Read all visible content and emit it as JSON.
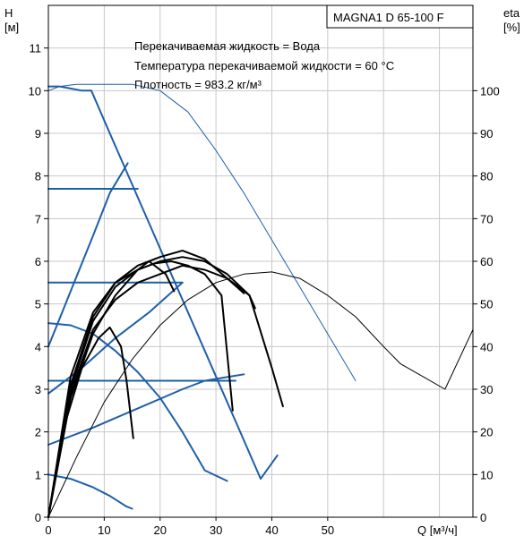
{
  "chart_data": {
    "type": "line",
    "model_label": "MAGNA1 D 65-100 F",
    "info_lines": [
      "Перекачиваемая жидкость = Вода",
      "Температура перекачиваемой жидкости = 60 °C",
      "Плотность = 983.2 кг/м³"
    ],
    "left_axis": {
      "label": "H",
      "unit": "[м]",
      "range": [
        0,
        12
      ],
      "ticks": [
        "0",
        "1",
        "2",
        "3",
        "4",
        "5",
        "6",
        "7",
        "8",
        "9",
        "10",
        "11"
      ]
    },
    "right_axis": {
      "label": "eta",
      "unit": "[%]",
      "range": [
        0,
        120
      ],
      "ticks": [
        "0",
        "10",
        "20",
        "30",
        "40",
        "50",
        "60",
        "70",
        "80",
        "90",
        "100"
      ]
    },
    "x_axis": {
      "label": "Q [м³/ч]",
      "range": [
        0,
        76
      ],
      "ticks": [
        "0",
        "10",
        "20",
        "30",
        "40",
        "50"
      ]
    },
    "grid": true,
    "colors": {
      "head_curve": "#1f5fa8",
      "efficiency_curve": "#000000",
      "grid": "#c8c8c8"
    },
    "series": [
      {
        "kind": "head-max",
        "points": [
          [
            0,
            10.0
          ],
          [
            2,
            10.1
          ],
          [
            5,
            10.15
          ],
          [
            10,
            10.15
          ],
          [
            15,
            10.15
          ],
          [
            20,
            10.0
          ],
          [
            25,
            9.5
          ],
          [
            30,
            8.6
          ],
          [
            35,
            7.6
          ],
          [
            40,
            6.5
          ],
          [
            45,
            5.4
          ],
          [
            50,
            4.3
          ],
          [
            55,
            3.2
          ]
        ]
      },
      {
        "kind": "head-max-limit",
        "points": [
          [
            0,
            10.1
          ],
          [
            2,
            10.1
          ],
          [
            4,
            10.05
          ],
          [
            6,
            10.0
          ],
          [
            7.7,
            10.0
          ],
          [
            10,
            9.3
          ],
          [
            14,
            8.1
          ],
          [
            18,
            6.9
          ],
          [
            22,
            5.7
          ],
          [
            26,
            4.5
          ],
          [
            30,
            3.3
          ],
          [
            34,
            2.1
          ],
          [
            38,
            0.9
          ],
          [
            41,
            1.45
          ]
        ]
      },
      {
        "kind": "const-pressure-high",
        "points": [
          [
            0,
            7.7
          ],
          [
            8,
            7.7
          ],
          [
            12,
            7.7
          ],
          [
            15,
            7.7
          ],
          [
            16,
            7.7
          ]
        ]
      },
      {
        "kind": "prop-pressure-high",
        "points": [
          [
            0,
            4.0
          ],
          [
            4,
            5.3
          ],
          [
            8,
            6.6
          ],
          [
            11,
            7.6
          ],
          [
            14.2,
            8.3
          ]
        ]
      },
      {
        "kind": "const-pressure-mid",
        "points": [
          [
            0,
            5.5
          ],
          [
            8,
            5.5
          ],
          [
            16,
            5.5
          ],
          [
            22,
            5.5
          ],
          [
            24,
            5.5
          ]
        ]
      },
      {
        "kind": "prop-pressure-mid",
        "points": [
          [
            0,
            2.9
          ],
          [
            6,
            3.5
          ],
          [
            12,
            4.2
          ],
          [
            18,
            4.8
          ],
          [
            24,
            5.5
          ]
        ]
      },
      {
        "kind": "prop-pressure-low",
        "points": [
          [
            0,
            1.7
          ],
          [
            8,
            2.1
          ],
          [
            16,
            2.55
          ],
          [
            24,
            3.0
          ],
          [
            28,
            3.2
          ],
          [
            35,
            3.35
          ]
        ]
      },
      {
        "kind": "const-pressure-low",
        "points": [
          [
            0,
            3.2
          ],
          [
            10,
            3.2
          ],
          [
            20,
            3.2
          ],
          [
            30,
            3.2
          ],
          [
            33.5,
            3.2
          ]
        ]
      },
      {
        "kind": "min-curve-a",
        "points": [
          [
            0,
            4.55
          ],
          [
            4,
            4.5
          ],
          [
            8,
            4.3
          ],
          [
            12,
            3.9
          ],
          [
            16,
            3.4
          ],
          [
            20,
            2.8
          ],
          [
            24,
            2.0
          ],
          [
            28,
            1.1
          ],
          [
            32,
            0.85
          ]
        ]
      },
      {
        "kind": "min-curve-b",
        "points": [
          [
            0,
            1.0
          ],
          [
            4,
            0.9
          ],
          [
            8,
            0.7
          ],
          [
            11,
            0.5
          ],
          [
            14,
            0.25
          ],
          [
            15,
            0.2
          ]
        ]
      },
      {
        "kind": "eta-overall",
        "points": [
          [
            0,
            0
          ],
          [
            5,
            14
          ],
          [
            10,
            27
          ],
          [
            15,
            37
          ],
          [
            20,
            45
          ],
          [
            25,
            51
          ],
          [
            30,
            55
          ],
          [
            35,
            57
          ],
          [
            40,
            57.5
          ],
          [
            45,
            56
          ],
          [
            50,
            52
          ],
          [
            55,
            47
          ],
          [
            60,
            40
          ],
          [
            63,
            36
          ],
          [
            67,
            33
          ],
          [
            71,
            30
          ],
          [
            76,
            44
          ]
        ]
      },
      {
        "kind": "eta-curve-1",
        "points": [
          [
            0,
            0
          ],
          [
            3,
            22
          ],
          [
            6,
            35
          ],
          [
            9,
            42
          ],
          [
            11,
            44.5
          ],
          [
            13,
            40
          ],
          [
            14,
            32
          ],
          [
            15.2,
            18.5
          ]
        ]
      },
      {
        "kind": "eta-curve-2",
        "points": [
          [
            0,
            0
          ],
          [
            4,
            28
          ],
          [
            8,
            43
          ],
          [
            12,
            52
          ],
          [
            16,
            58
          ],
          [
            19,
            59.5
          ],
          [
            22,
            60
          ],
          [
            25,
            59
          ],
          [
            28,
            57
          ],
          [
            31,
            52
          ],
          [
            33,
            25
          ]
        ]
      },
      {
        "kind": "eta-curve-3",
        "points": [
          [
            0,
            0
          ],
          [
            4,
            30
          ],
          [
            8,
            46
          ],
          [
            12,
            54
          ],
          [
            16,
            58
          ],
          [
            20,
            60
          ],
          [
            24,
            61
          ],
          [
            28,
            60
          ],
          [
            32,
            57
          ],
          [
            36,
            52
          ],
          [
            40,
            35
          ],
          [
            42,
            26
          ]
        ]
      },
      {
        "kind": "eta-curve-4",
        "points": [
          [
            0,
            0
          ],
          [
            4,
            31
          ],
          [
            8,
            47
          ],
          [
            12,
            55
          ],
          [
            16,
            59
          ],
          [
            20,
            61
          ],
          [
            24,
            62.5
          ],
          [
            28,
            60.5
          ],
          [
            32,
            56
          ],
          [
            36,
            52
          ],
          [
            37,
            49
          ]
        ]
      },
      {
        "kind": "eta-curve-5",
        "points": [
          [
            0,
            0
          ],
          [
            4,
            33
          ],
          [
            8,
            48
          ],
          [
            12,
            55
          ],
          [
            16,
            58
          ],
          [
            18,
            60
          ],
          [
            21,
            57
          ],
          [
            22.5,
            53
          ]
        ]
      },
      {
        "kind": "eta-curve-6",
        "points": [
          [
            0,
            0
          ],
          [
            4,
            29
          ],
          [
            8,
            44
          ],
          [
            12,
            51
          ],
          [
            16,
            55
          ],
          [
            20,
            57
          ],
          [
            24,
            59
          ],
          [
            28,
            58
          ],
          [
            32,
            56
          ],
          [
            35,
            52.5
          ]
        ]
      }
    ]
  }
}
